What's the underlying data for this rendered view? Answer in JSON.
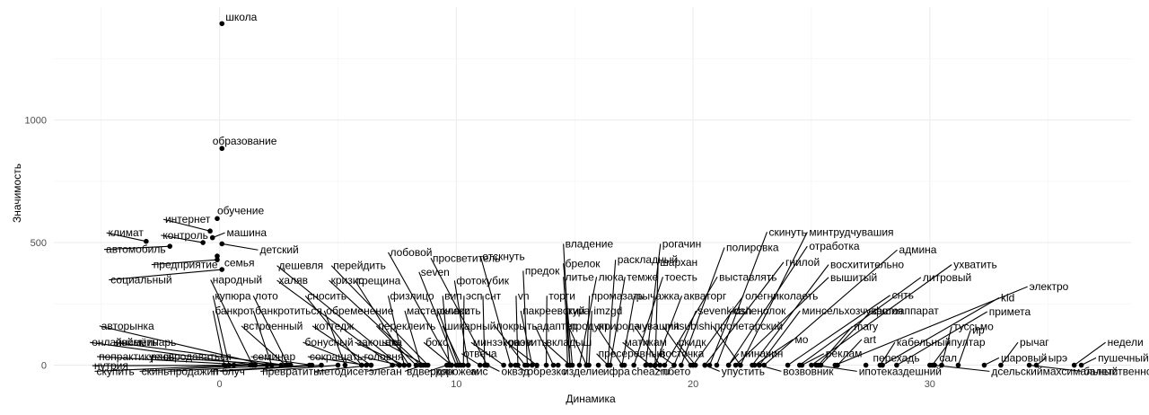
{
  "chart_data": {
    "type": "scatter",
    "title": "",
    "xlabel": "Динамика",
    "ylabel": "Значимость",
    "xlim": [
      -7,
      38.5
    ],
    "ylim": [
      -20,
      1460
    ],
    "x_ticks": [
      0,
      10,
      20,
      30
    ],
    "y_ticks": [
      0,
      500,
      1000
    ],
    "grid": true,
    "points": [
      {
        "label": "школа",
        "x": 0.1,
        "y": 1393,
        "lx": 0.25,
        "ly": 1420
      },
      {
        "label": "образование",
        "x": 0.1,
        "y": 884,
        "lx": -0.3,
        "ly": 915
      },
      {
        "label": "обучение",
        "x": -0.1,
        "y": 598,
        "lx": -0.1,
        "ly": 630
      },
      {
        "label": "интернет",
        "x": -0.4,
        "y": 547,
        "lx": -2.3,
        "ly": 595
      },
      {
        "label": "машина",
        "x": -0.3,
        "y": 520,
        "lx": 0.3,
        "ly": 540
      },
      {
        "label": "климат",
        "x": -3.1,
        "y": 505,
        "lx": -4.7,
        "ly": 540
      },
      {
        "label": "контроль",
        "x": -0.7,
        "y": 500,
        "lx": -2.4,
        "ly": 530
      },
      {
        "label": "автомобиль",
        "x": -2.1,
        "y": 485,
        "lx": -4.8,
        "ly": 472
      },
      {
        "label": "детский",
        "x": 0.1,
        "y": 495,
        "lx": 1.7,
        "ly": 470
      },
      {
        "label": "предприятие",
        "x": -0.1,
        "y": 430,
        "lx": -2.8,
        "ly": 410
      },
      {
        "label": "семья",
        "x": -0.1,
        "y": 445,
        "lx": 0.2,
        "ly": 418
      },
      {
        "label": "социальный",
        "x": 0.1,
        "y": 390,
        "lx": -4.6,
        "ly": 348
      },
      {
        "label": "народный",
        "x": 1.4,
        "y": 0,
        "lx": -0.3,
        "ly": 348
      },
      {
        "label": "дешевля",
        "x": 7.6,
        "y": 0,
        "lx": 2.5,
        "ly": 406
      },
      {
        "label": "перейдить",
        "x": 8.8,
        "y": 0,
        "lx": 4.8,
        "ly": 406
      },
      {
        "label": "лобовой",
        "x": 9.8,
        "y": 0,
        "lx": 7.2,
        "ly": 460
      },
      {
        "label": "seven",
        "x": 10.0,
        "y": 0,
        "lx": 8.5,
        "ly": 380
      },
      {
        "label": "просветитель",
        "x": 11.3,
        "y": 0,
        "lx": 9.0,
        "ly": 437
      },
      {
        "label": "отскнуть",
        "x": 12.3,
        "y": 0,
        "lx": 11.1,
        "ly": 443
      },
      {
        "label": "халяв",
        "x": 7.3,
        "y": 0,
        "lx": 2.5,
        "ly": 346
      },
      {
        "label": "кризис",
        "x": 8.5,
        "y": 0,
        "lx": 4.7,
        "ly": 346
      },
      {
        "label": "трещина",
        "x": 8.0,
        "y": 0,
        "lx": 5.8,
        "ly": 345
      },
      {
        "label": "фотокубик",
        "x": 10.5,
        "y": 0,
        "lx": 10.0,
        "ly": 345
      },
      {
        "label": "предок",
        "x": 13.0,
        "y": 0,
        "lx": 12.9,
        "ly": 385
      },
      {
        "label": "брелок",
        "x": 14.9,
        "y": 0,
        "lx": 14.6,
        "ly": 415
      },
      {
        "label": "владение",
        "x": 14.8,
        "y": 0,
        "lx": 14.6,
        "ly": 495
      },
      {
        "label": "раскладный",
        "x": 16.4,
        "y": 0,
        "lx": 16.8,
        "ly": 430
      },
      {
        "label": "рогачин",
        "x": 18.0,
        "y": 0,
        "lx": 18.7,
        "ly": 495
      },
      {
        "label": "шархан",
        "x": 18.4,
        "y": 0,
        "lx": 18.6,
        "ly": 420
      },
      {
        "label": "полировка",
        "x": 19.5,
        "y": 0,
        "lx": 21.4,
        "ly": 480
      },
      {
        "label": "скинуть",
        "x": 21.0,
        "y": 0,
        "lx": 23.2,
        "ly": 543
      },
      {
        "label": "минтрудчувашия",
        "x": 22.0,
        "y": 0,
        "lx": 24.9,
        "ly": 543
      },
      {
        "label": "отработка",
        "x": 21.5,
        "y": 0,
        "lx": 24.9,
        "ly": 485
      },
      {
        "label": "админа",
        "x": 23.0,
        "y": 0,
        "lx": 28.7,
        "ly": 470
      },
      {
        "label": "гнилой",
        "x": 20.5,
        "y": 0,
        "lx": 23.9,
        "ly": 420
      },
      {
        "label": "восхитительно",
        "x": 22.5,
        "y": 0,
        "lx": 25.8,
        "ly": 410
      },
      {
        "label": "ухватить",
        "x": 25.0,
        "y": 0,
        "lx": 31.0,
        "ly": 410
      },
      {
        "label": "литье",
        "x": 14.8,
        "y": 0,
        "lx": 14.6,
        "ly": 360
      },
      {
        "label": "люка",
        "x": 15.2,
        "y": 0,
        "lx": 16.0,
        "ly": 360
      },
      {
        "label": "темже",
        "x": 16.5,
        "y": 0,
        "lx": 17.2,
        "ly": 360
      },
      {
        "label": "тоесть",
        "x": 17.5,
        "y": 0,
        "lx": 18.8,
        "ly": 360
      },
      {
        "label": "выставлять",
        "x": 18.8,
        "y": 0,
        "lx": 21.1,
        "ly": 360
      },
      {
        "label": "вышитый",
        "x": 21.8,
        "y": 0,
        "lx": 25.8,
        "ly": 358
      },
      {
        "label": "литровый",
        "x": 24.5,
        "y": 0,
        "lx": 29.7,
        "ly": 358
      },
      {
        "label": "электро",
        "x": 26.0,
        "y": 0,
        "lx": 34.2,
        "ly": 320
      },
      {
        "label": "kid",
        "x": 28.0,
        "y": 0,
        "lx": 33.0,
        "ly": 275
      },
      {
        "label": "снть",
        "x": 24.0,
        "y": 0,
        "lx": 28.4,
        "ly": 285
      },
      {
        "label": "купюра",
        "x": 0.4,
        "y": 0,
        "lx": -0.2,
        "ly": 283
      },
      {
        "label": "лото",
        "x": 2.9,
        "y": 0,
        "lx": 1.5,
        "ly": 283
      },
      {
        "label": "сносить",
        "x": 6.0,
        "y": 0,
        "lx": 3.7,
        "ly": 283
      },
      {
        "label": "физлицо",
        "x": 7.8,
        "y": 0,
        "lx": 7.2,
        "ly": 283
      },
      {
        "label": "вип",
        "x": 9.7,
        "y": 0,
        "lx": 9.5,
        "ly": 283
      },
      {
        "label": "эсп",
        "x": 10.3,
        "y": 0,
        "lx": 10.4,
        "ly": 283
      },
      {
        "label": "снт",
        "x": 11.2,
        "y": 0,
        "lx": 11.2,
        "ly": 283
      },
      {
        "label": "vn",
        "x": 12.6,
        "y": 0,
        "lx": 12.6,
        "ly": 283
      },
      {
        "label": "торги",
        "x": 13.8,
        "y": 0,
        "lx": 13.9,
        "ly": 283
      },
      {
        "label": "промазать",
        "x": 15.5,
        "y": 0,
        "lx": 15.7,
        "ly": 283
      },
      {
        "label": "рычажка",
        "x": 17.0,
        "y": 0,
        "lx": 17.6,
        "ly": 283
      },
      {
        "label": "акваторг",
        "x": 18.4,
        "y": 0,
        "lx": 19.6,
        "ly": 283
      },
      {
        "label": "олегниколаеть",
        "x": 20.0,
        "y": 0,
        "lx": 22.2,
        "ly": 283
      },
      {
        "label": "банкрот",
        "x": 0.2,
        "y": 0,
        "lx": -0.2,
        "ly": 222
      },
      {
        "label": "банкротиться",
        "x": 2.2,
        "y": 0,
        "lx": 1.5,
        "ly": 222
      },
      {
        "label": "обременение",
        "x": 5.3,
        "y": 0,
        "lx": 4.5,
        "ly": 222
      },
      {
        "label": "мастеркласс",
        "x": 8.5,
        "y": 0,
        "lx": 7.9,
        "ly": 222
      },
      {
        "label": "снижить",
        "x": 10.1,
        "y": 0,
        "lx": 9.3,
        "ly": 222
      },
      {
        "label": "пакреевский",
        "x": 13.2,
        "y": 0,
        "lx": 12.8,
        "ly": 222
      },
      {
        "label": "тура",
        "x": 14.7,
        "y": 0,
        "lx": 14.7,
        "ly": 222
      },
      {
        "label": "imzgd",
        "x": 15.6,
        "y": 0,
        "lx": 15.8,
        "ly": 222
      },
      {
        "label": "sevenkidsh",
        "x": 19.2,
        "y": 0,
        "lx": 20.2,
        "ly": 222
      },
      {
        "label": "саленолок",
        "x": 20.7,
        "y": 0,
        "lx": 21.7,
        "ly": 222
      },
      {
        "label": "минсельхозчувашия",
        "x": 22.8,
        "y": 0,
        "lx": 24.6,
        "ly": 222
      },
      {
        "label": "фотоаппарат",
        "x": 25.4,
        "y": 0,
        "lx": 27.6,
        "ly": 222
      },
      {
        "label": "примета",
        "x": 28.6,
        "y": 0,
        "lx": 32.5,
        "ly": 218
      },
      {
        "label": "авторынка",
        "x": 2.0,
        "y": 0,
        "lx": -5.0,
        "ly": 160
      },
      {
        "label": "встроенный",
        "x": 2.8,
        "y": 0,
        "lx": 1.0,
        "ly": 160
      },
      {
        "label": "коттедж",
        "x": 6.4,
        "y": 0,
        "lx": 4.0,
        "ly": 160
      },
      {
        "label": "переклеить",
        "x": 8.3,
        "y": 0,
        "lx": 6.7,
        "ly": 160
      },
      {
        "label": "шикарный",
        "x": 10.2,
        "y": 0,
        "lx": 9.5,
        "ly": 160
      },
      {
        "label": "покрыть",
        "x": 12.9,
        "y": 0,
        "lx": 11.7,
        "ly": 160
      },
      {
        "label": "адаптер",
        "x": 14.1,
        "y": 0,
        "lx": 13.4,
        "ly": 160
      },
      {
        "label": "продукт",
        "x": 15.5,
        "y": 0,
        "lx": 14.8,
        "ly": 160
      },
      {
        "label": "природа",
        "x": 17.0,
        "y": 0,
        "lx": 16.0,
        "ly": 160
      },
      {
        "label": "чувашия",
        "x": 18.6,
        "y": 0,
        "lx": 17.6,
        "ly": 160
      },
      {
        "label": "mitsubishi",
        "x": 19.9,
        "y": 0,
        "lx": 18.8,
        "ly": 160
      },
      {
        "label": "пролетарский",
        "x": 22.0,
        "y": 0,
        "lx": 20.9,
        "ly": 160
      },
      {
        "label": "mary",
        "x": 25.3,
        "y": 0,
        "lx": 26.8,
        "ly": 158
      },
      {
        "label": "туссьмо",
        "x": 30.5,
        "y": 0,
        "lx": 31.0,
        "ly": 158
      },
      {
        "label": "ир",
        "x": 31.2,
        "y": 0,
        "lx": 31.8,
        "ly": 143
      },
      {
        "label": "онлайнсеминарь",
        "x": 1.5,
        "y": 0,
        "lx": -5.4,
        "ly": 93
      },
      {
        "label": "поймёть",
        "x": 2.8,
        "y": 0,
        "lx": -4.4,
        "ly": 93
      },
      {
        "label": "бонусный",
        "x": 6.0,
        "y": 0,
        "lx": 3.6,
        "ly": 93
      },
      {
        "label": "закошто",
        "x": 7.8,
        "y": 0,
        "lx": 5.8,
        "ly": 93
      },
      {
        "label": "ака",
        "x": 8.7,
        "y": 0,
        "lx": 7.0,
        "ly": 93
      },
      {
        "label": "бокс",
        "x": 9.8,
        "y": 0,
        "lx": 8.7,
        "ly": 93
      },
      {
        "label": "минзэконом",
        "x": 12.0,
        "y": 0,
        "lx": 10.7,
        "ly": 93
      },
      {
        "label": "развить",
        "x": 13.4,
        "y": 0,
        "lx": 12.2,
        "ly": 93
      },
      {
        "label": "вкладыш",
        "x": 14.8,
        "y": 0,
        "lx": 13.8,
        "ly": 93
      },
      {
        "label": "матикам",
        "x": 18.2,
        "y": 0,
        "lx": 17.1,
        "ly": 93
      },
      {
        "label": "скидк",
        "x": 20.1,
        "y": 0,
        "lx": 19.4,
        "ly": 93
      },
      {
        "label": "мо",
        "x": 22.6,
        "y": 0,
        "lx": 24.3,
        "ly": 105
      },
      {
        "label": "art",
        "x": 26.1,
        "y": 0,
        "lx": 27.2,
        "ly": 105
      },
      {
        "label": "кабельный",
        "x": 27.9,
        "y": 0,
        "lx": 28.6,
        "ly": 93
      },
      {
        "label": "пултар",
        "x": 30.1,
        "y": 0,
        "lx": 30.9,
        "ly": 93
      },
      {
        "label": "рычаг",
        "x": 33.0,
        "y": 0,
        "lx": 33.8,
        "ly": 93
      },
      {
        "label": "недели",
        "x": 36.1,
        "y": 0,
        "lx": 37.5,
        "ly": 93
      },
      {
        "label": "попрактикуешь",
        "x": 1.3,
        "y": 0,
        "lx": -5.1,
        "ly": 35
      },
      {
        "label": "распродаваться",
        "x": 2.8,
        "y": 0,
        "lx": -2.9,
        "ly": 35
      },
      {
        "label": "семинар",
        "x": 3.9,
        "y": 0,
        "lx": 1.4,
        "ly": 35
      },
      {
        "label": "сокращать",
        "x": 6.2,
        "y": 0,
        "lx": 3.8,
        "ly": 35
      },
      {
        "label": "головня",
        "x": 7.6,
        "y": 0,
        "lx": 6.1,
        "ly": 35
      },
      {
        "label": "отвеча",
        "x": 11.0,
        "y": 0,
        "lx": 10.3,
        "ly": 47
      },
      {
        "label": "пресеревный",
        "x": 16.4,
        "y": 0,
        "lx": 16.0,
        "ly": 47
      },
      {
        "label": "восточка",
        "x": 19.2,
        "y": 0,
        "lx": 18.6,
        "ly": 47
      },
      {
        "label": "миначин",
        "x": 21.5,
        "y": 0,
        "lx": 22.0,
        "ly": 47
      },
      {
        "label": "реклам",
        "x": 24.6,
        "y": 0,
        "lx": 25.6,
        "ly": 47
      },
      {
        "label": "перехадь",
        "x": 27.3,
        "y": 0,
        "lx": 27.6,
        "ly": 30
      },
      {
        "label": "сал",
        "x": 30.0,
        "y": 0,
        "lx": 30.4,
        "ly": 30
      },
      {
        "label": "шаровый",
        "x": 32.3,
        "y": 0,
        "lx": 33.0,
        "ly": 30
      },
      {
        "label": "ырэ",
        "x": 34.5,
        "y": 0,
        "lx": 35.0,
        "ly": 30
      },
      {
        "label": "пушечный",
        "x": 36.4,
        "y": 0,
        "lx": 37.1,
        "ly": 30
      },
      {
        "label": "скупить",
        "x": 0.6,
        "y": 0,
        "lx": -5.2,
        "ly": -25
      },
      {
        "label": "скинь",
        "x": 1.4,
        "y": 0,
        "lx": -3.3,
        "ly": -25
      },
      {
        "label": "продажип",
        "x": 2.6,
        "y": 0,
        "lx": -2.1,
        "ly": -25
      },
      {
        "label": "п",
        "x": 3.8,
        "y": 0,
        "lx": -0.3,
        "ly": -25
      },
      {
        "label": "блуч",
        "x": 4.3,
        "y": 0,
        "lx": 0.1,
        "ly": -25
      },
      {
        "label": "превратить",
        "x": 5.0,
        "y": 0,
        "lx": 1.8,
        "ly": -25
      },
      {
        "label": "методисет",
        "x": 6.4,
        "y": 0,
        "lx": 4.1,
        "ly": -25
      },
      {
        "label": "элеган",
        "x": 7.6,
        "y": 0,
        "lx": 6.3,
        "ly": -25
      },
      {
        "label": "вдвердян",
        "x": 8.6,
        "y": 0,
        "lx": 7.9,
        "ly": -25
      },
      {
        "label": "скорожем",
        "x": 9.6,
        "y": 0,
        "lx": 8.9,
        "ly": -25
      },
      {
        "label": "аис",
        "x": 10.5,
        "y": 0,
        "lx": 10.6,
        "ly": -25
      },
      {
        "label": "оквэд",
        "x": 11.3,
        "y": 0,
        "lx": 11.9,
        "ly": -25
      },
      {
        "label": "обрезко",
        "x": 12.5,
        "y": 0,
        "lx": 13.0,
        "ly": -25
      },
      {
        "label": "изделие",
        "x": 14.3,
        "y": 0,
        "lx": 14.5,
        "ly": -25
      },
      {
        "label": "ифра",
        "x": 16.0,
        "y": 0,
        "lx": 16.2,
        "ly": -25
      },
      {
        "label": "cheazru",
        "x": 17.1,
        "y": 0,
        "lx": 17.4,
        "ly": -25
      },
      {
        "label": "пбето",
        "x": 18.2,
        "y": 0,
        "lx": 18.7,
        "ly": -25
      },
      {
        "label": "упустить",
        "x": 20.5,
        "y": 0,
        "lx": 21.2,
        "ly": -25
      },
      {
        "label": "возвовник",
        "x": 22.8,
        "y": 0,
        "lx": 23.8,
        "ly": -25
      },
      {
        "label": "ипотеказдешний",
        "x": 25.2,
        "y": 0,
        "lx": 27.0,
        "ly": -25
      },
      {
        "label": "дсельскиймахсимальный",
        "x": 30.2,
        "y": 0,
        "lx": 32.6,
        "ly": -25
      },
      {
        "label": "балетственно",
        "x": 34.2,
        "y": 0,
        "lx": 36.5,
        "ly": -25
      },
      {
        "label": "нутрия",
        "x": 3.0,
        "y": 0,
        "lx": -5.3,
        "ly": -2
      }
    ]
  }
}
